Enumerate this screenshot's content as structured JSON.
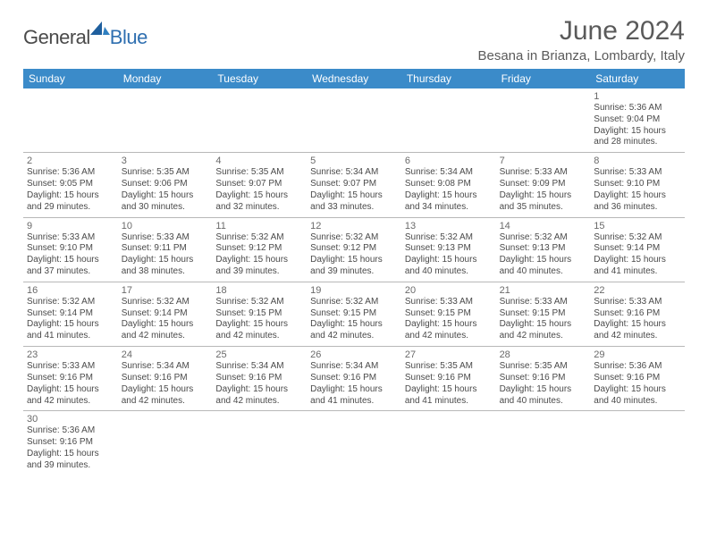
{
  "logo": {
    "general": "General",
    "blue": "Blue"
  },
  "title": "June 2024",
  "location": "Besana in Brianza, Lombardy, Italy",
  "colors": {
    "header_bg": "#3b8bc9",
    "header_text": "#ffffff",
    "body_text": "#4a4a4a",
    "title_text": "#5a5a5a",
    "rule": "#b8b8b8",
    "logo_blue": "#2f6fb0"
  },
  "typography": {
    "title_fontsize": 30,
    "location_fontsize": 15,
    "weekday_fontsize": 12,
    "daynum_fontsize": 11,
    "detail_fontsize": 10
  },
  "layout": {
    "columns": 7,
    "rows": 6,
    "cell_min_height": 66
  },
  "weekdays": [
    "Sunday",
    "Monday",
    "Tuesday",
    "Wednesday",
    "Thursday",
    "Friday",
    "Saturday"
  ],
  "weeks": [
    [
      null,
      null,
      null,
      null,
      null,
      null,
      {
        "n": "1",
        "sunrise": "5:36 AM",
        "sunset": "9:04 PM",
        "dl1": "Daylight: 15 hours",
        "dl2": "and 28 minutes."
      }
    ],
    [
      {
        "n": "2",
        "sunrise": "5:36 AM",
        "sunset": "9:05 PM",
        "dl1": "Daylight: 15 hours",
        "dl2": "and 29 minutes."
      },
      {
        "n": "3",
        "sunrise": "5:35 AM",
        "sunset": "9:06 PM",
        "dl1": "Daylight: 15 hours",
        "dl2": "and 30 minutes."
      },
      {
        "n": "4",
        "sunrise": "5:35 AM",
        "sunset": "9:07 PM",
        "dl1": "Daylight: 15 hours",
        "dl2": "and 32 minutes."
      },
      {
        "n": "5",
        "sunrise": "5:34 AM",
        "sunset": "9:07 PM",
        "dl1": "Daylight: 15 hours",
        "dl2": "and 33 minutes."
      },
      {
        "n": "6",
        "sunrise": "5:34 AM",
        "sunset": "9:08 PM",
        "dl1": "Daylight: 15 hours",
        "dl2": "and 34 minutes."
      },
      {
        "n": "7",
        "sunrise": "5:33 AM",
        "sunset": "9:09 PM",
        "dl1": "Daylight: 15 hours",
        "dl2": "and 35 minutes."
      },
      {
        "n": "8",
        "sunrise": "5:33 AM",
        "sunset": "9:10 PM",
        "dl1": "Daylight: 15 hours",
        "dl2": "and 36 minutes."
      }
    ],
    [
      {
        "n": "9",
        "sunrise": "5:33 AM",
        "sunset": "9:10 PM",
        "dl1": "Daylight: 15 hours",
        "dl2": "and 37 minutes."
      },
      {
        "n": "10",
        "sunrise": "5:33 AM",
        "sunset": "9:11 PM",
        "dl1": "Daylight: 15 hours",
        "dl2": "and 38 minutes."
      },
      {
        "n": "11",
        "sunrise": "5:32 AM",
        "sunset": "9:12 PM",
        "dl1": "Daylight: 15 hours",
        "dl2": "and 39 minutes."
      },
      {
        "n": "12",
        "sunrise": "5:32 AM",
        "sunset": "9:12 PM",
        "dl1": "Daylight: 15 hours",
        "dl2": "and 39 minutes."
      },
      {
        "n": "13",
        "sunrise": "5:32 AM",
        "sunset": "9:13 PM",
        "dl1": "Daylight: 15 hours",
        "dl2": "and 40 minutes."
      },
      {
        "n": "14",
        "sunrise": "5:32 AM",
        "sunset": "9:13 PM",
        "dl1": "Daylight: 15 hours",
        "dl2": "and 40 minutes."
      },
      {
        "n": "15",
        "sunrise": "5:32 AM",
        "sunset": "9:14 PM",
        "dl1": "Daylight: 15 hours",
        "dl2": "and 41 minutes."
      }
    ],
    [
      {
        "n": "16",
        "sunrise": "5:32 AM",
        "sunset": "9:14 PM",
        "dl1": "Daylight: 15 hours",
        "dl2": "and 41 minutes."
      },
      {
        "n": "17",
        "sunrise": "5:32 AM",
        "sunset": "9:14 PM",
        "dl1": "Daylight: 15 hours",
        "dl2": "and 42 minutes."
      },
      {
        "n": "18",
        "sunrise": "5:32 AM",
        "sunset": "9:15 PM",
        "dl1": "Daylight: 15 hours",
        "dl2": "and 42 minutes."
      },
      {
        "n": "19",
        "sunrise": "5:32 AM",
        "sunset": "9:15 PM",
        "dl1": "Daylight: 15 hours",
        "dl2": "and 42 minutes."
      },
      {
        "n": "20",
        "sunrise": "5:33 AM",
        "sunset": "9:15 PM",
        "dl1": "Daylight: 15 hours",
        "dl2": "and 42 minutes."
      },
      {
        "n": "21",
        "sunrise": "5:33 AM",
        "sunset": "9:15 PM",
        "dl1": "Daylight: 15 hours",
        "dl2": "and 42 minutes."
      },
      {
        "n": "22",
        "sunrise": "5:33 AM",
        "sunset": "9:16 PM",
        "dl1": "Daylight: 15 hours",
        "dl2": "and 42 minutes."
      }
    ],
    [
      {
        "n": "23",
        "sunrise": "5:33 AM",
        "sunset": "9:16 PM",
        "dl1": "Daylight: 15 hours",
        "dl2": "and 42 minutes."
      },
      {
        "n": "24",
        "sunrise": "5:34 AM",
        "sunset": "9:16 PM",
        "dl1": "Daylight: 15 hours",
        "dl2": "and 42 minutes."
      },
      {
        "n": "25",
        "sunrise": "5:34 AM",
        "sunset": "9:16 PM",
        "dl1": "Daylight: 15 hours",
        "dl2": "and 42 minutes."
      },
      {
        "n": "26",
        "sunrise": "5:34 AM",
        "sunset": "9:16 PM",
        "dl1": "Daylight: 15 hours",
        "dl2": "and 41 minutes."
      },
      {
        "n": "27",
        "sunrise": "5:35 AM",
        "sunset": "9:16 PM",
        "dl1": "Daylight: 15 hours",
        "dl2": "and 41 minutes."
      },
      {
        "n": "28",
        "sunrise": "5:35 AM",
        "sunset": "9:16 PM",
        "dl1": "Daylight: 15 hours",
        "dl2": "and 40 minutes."
      },
      {
        "n": "29",
        "sunrise": "5:36 AM",
        "sunset": "9:16 PM",
        "dl1": "Daylight: 15 hours",
        "dl2": "and 40 minutes."
      }
    ],
    [
      {
        "n": "30",
        "sunrise": "5:36 AM",
        "sunset": "9:16 PM",
        "dl1": "Daylight: 15 hours",
        "dl2": "and 39 minutes."
      },
      null,
      null,
      null,
      null,
      null,
      null
    ]
  ],
  "labels": {
    "sunrise_prefix": "Sunrise: ",
    "sunset_prefix": "Sunset: "
  }
}
